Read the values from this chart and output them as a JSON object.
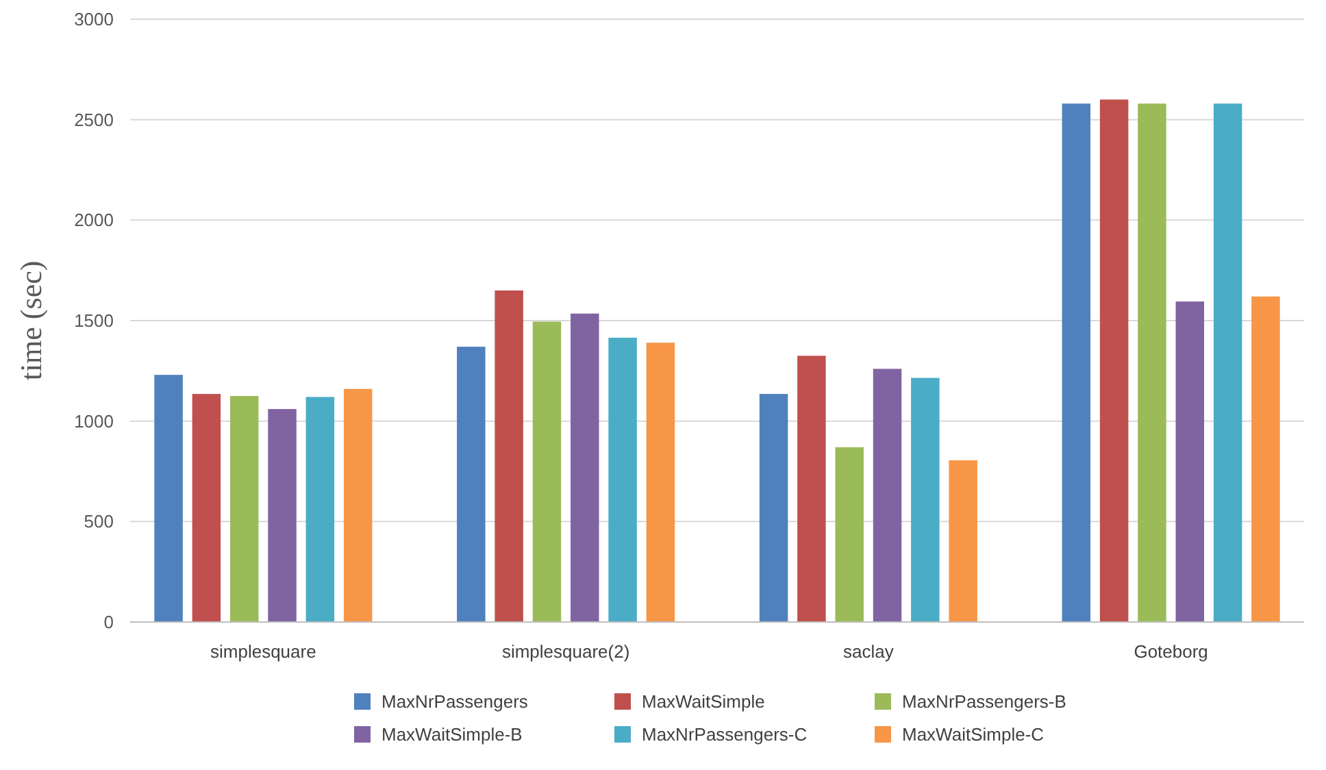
{
  "chart_data": {
    "type": "bar",
    "ylabel": "time (sec)",
    "categories": [
      "simplesquare",
      "simplesquare(2)",
      "saclay",
      "Goteborg"
    ],
    "series": [
      {
        "name": "MaxNrPassengers",
        "color": "#4f81bd",
        "values": [
          1230,
          1370,
          1135,
          2580
        ]
      },
      {
        "name": "MaxWaitSimple",
        "color": "#c0504d",
        "values": [
          1135,
          1650,
          1325,
          2600
        ]
      },
      {
        "name": "MaxNrPassengers-B",
        "color": "#9bbb59",
        "values": [
          1125,
          1495,
          870,
          2580
        ]
      },
      {
        "name": "MaxWaitSimple-B",
        "color": "#8064a2",
        "values": [
          1060,
          1535,
          1260,
          1595
        ]
      },
      {
        "name": "MaxNrPassengers-C",
        "color": "#4bacc6",
        "values": [
          1120,
          1415,
          1215,
          2580
        ]
      },
      {
        "name": "MaxWaitSimple-C",
        "color": "#f79646",
        "values": [
          1160,
          1390,
          805,
          1620
        ]
      }
    ],
    "ylim": [
      0,
      3000
    ],
    "yticks": [
      0,
      500,
      1000,
      1500,
      2000,
      2500,
      3000
    ],
    "grid": "y",
    "legend": "bottom"
  }
}
